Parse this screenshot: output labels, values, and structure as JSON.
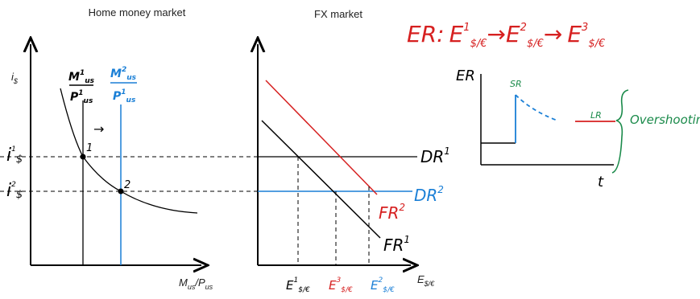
{
  "left_panel": {
    "title": "Home money market",
    "y_axis_label": {
      "base": "i",
      "sub": "$"
    },
    "x_axis_label": {
      "num": "M",
      "num_sub": "us",
      "den": "P",
      "den_sub": "us"
    },
    "supply_1": {
      "num": "M",
      "num_sup": "1",
      "num_sub": "us",
      "den": "P",
      "den_sup": "1",
      "den_sub": "us"
    },
    "supply_2": {
      "num": "M",
      "num_sup": "2",
      "num_sub": "us",
      "den": "P",
      "den_sup": "1",
      "den_sub": "us"
    },
    "rate_1": {
      "base": "i",
      "sup": "1",
      "sub": "$"
    },
    "rate_2": {
      "base": "i",
      "sup": "2",
      "sub": "$"
    },
    "point_1": "1",
    "point_2": "2",
    "arrow": "→"
  },
  "right_panel": {
    "title": "FX market",
    "x_axis_label": {
      "base": "E",
      "sub": "$/€"
    },
    "dr_1": {
      "base": "DR",
      "sup": "1"
    },
    "dr_2": {
      "base": "DR",
      "sup": "2"
    },
    "fr_1": {
      "base": "FR",
      "sup": "1"
    },
    "fr_2": {
      "base": "FR",
      "sup": "2"
    },
    "e_1": {
      "base": "E",
      "sup": "1",
      "sub": "$/€"
    },
    "e_3": {
      "base": "E",
      "sup": "3",
      "sub": "$/€"
    },
    "e_2": {
      "base": "E",
      "sup": "2",
      "sub": "$/€"
    }
  },
  "annotation": {
    "prefix": "ER:",
    "steps": [
      {
        "base": "E",
        "sup": "1",
        "sub": "$/€"
      },
      {
        "base": "E",
        "sup": "2",
        "sub": "$/€"
      },
      {
        "base": "E",
        "sup": "3",
        "sub": "$/€"
      }
    ],
    "arrow": "→"
  },
  "path_graph": {
    "y_label": "ER",
    "x_label": "t",
    "short_run": "SR",
    "long_run": "LR",
    "note": "Overshooting"
  }
}
